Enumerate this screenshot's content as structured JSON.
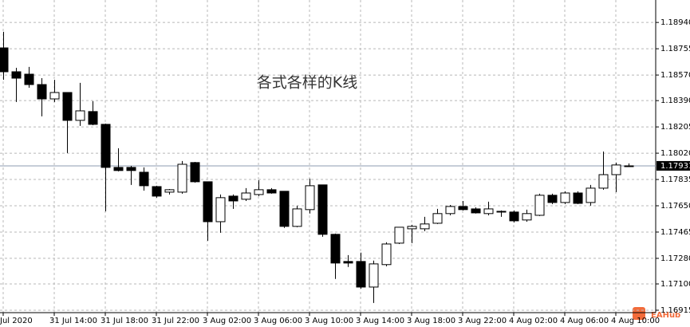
{
  "chart_data": {
    "type": "candlestick",
    "annotation": "各式各样的K线",
    "watermark": "EAHub",
    "categories": [
      "Jul 2020",
      null,
      null,
      null,
      "31 Jul 14:00",
      null,
      null,
      null,
      "31 Jul 18:00",
      null,
      null,
      null,
      "31 Jul 22:00",
      null,
      null,
      null,
      "3 Aug 02:00",
      null,
      null,
      null,
      "3 Aug 06:00",
      null,
      null,
      null,
      "3 Aug 10:00",
      null,
      null,
      null,
      "3 Aug 14:00",
      null,
      null,
      null,
      "3 Aug 18:00",
      null,
      null,
      null,
      "3 Aug 22:00",
      null,
      null,
      null,
      "4 Aug 02:00",
      null,
      null,
      null,
      "4 Aug 06:00",
      null,
      null,
      null,
      "4 Aug 10:00",
      null
    ],
    "open": [
      1.18761,
      1.18593,
      1.18576,
      1.18503,
      1.18402,
      1.18447,
      1.18251,
      1.18313,
      1.18223,
      1.1792,
      1.1792,
      1.17886,
      1.17785,
      1.17746,
      1.17746,
      1.17954,
      1.17819,
      1.17538,
      1.17718,
      1.17696,
      1.17729,
      1.17763,
      1.17752,
      1.17505,
      1.17623,
      1.17797,
      1.17449,
      1.17258,
      1.17258,
      1.17078,
      1.17236,
      1.17387,
      1.17488,
      1.17488,
      1.17527,
      1.17595,
      1.17645,
      1.17628,
      1.17595,
      1.17611,
      1.17606,
      1.1755,
      1.17583,
      1.17724,
      1.17673,
      1.1774,
      1.17673,
      1.17774,
      1.17869,
      1.17926
    ],
    "high": [
      1.18874,
      1.18621,
      1.18627,
      1.18548,
      1.18537,
      1.18447,
      1.18515,
      1.18386,
      1.18228,
      1.18055,
      1.17931,
      1.1792,
      1.17791,
      1.17768,
      1.17965,
      1.17959,
      1.17819,
      1.17729,
      1.17729,
      1.17774,
      1.1783,
      1.17774,
      1.17752,
      1.17651,
      1.17841,
      1.17797,
      1.17454,
      1.17303,
      1.1732,
      1.17264,
      1.17393,
      1.17499,
      1.17516,
      1.17572,
      1.17628,
      1.17656,
      1.17684,
      1.17639,
      1.17679,
      1.17617,
      1.17617,
      1.17623,
      1.17735,
      1.17735,
      1.17752,
      1.17752,
      1.17797,
      1.18032,
      1.17954,
      1.17948
    ],
    "low": [
      1.18537,
      1.1838,
      1.18481,
      1.18279,
      1.1838,
      1.18021,
      1.18212,
      1.18217,
      1.17611,
      1.17892,
      1.17797,
      1.17757,
      1.17707,
      1.17729,
      1.17735,
      1.17813,
      1.17404,
      1.1746,
      1.17628,
      1.17684,
      1.17718,
      1.17735,
      1.17494,
      1.17499,
      1.17595,
      1.17432,
      1.17135,
      1.17219,
      1.17067,
      1.16966,
      1.17224,
      1.17381,
      1.17387,
      1.17471,
      1.17522,
      1.17583,
      1.17617,
      1.17595,
      1.17583,
      1.17572,
      1.17533,
      1.17538,
      1.17578,
      1.17662,
      1.17662,
      1.17662,
      1.17651,
      1.17763,
      1.17746,
      1.17926
    ],
    "close": [
      1.18593,
      1.18548,
      1.18503,
      1.18402,
      1.18447,
      1.18251,
      1.18318,
      1.18223,
      1.1792,
      1.17898,
      1.17898,
      1.17791,
      1.17718,
      1.17763,
      1.17942,
      1.17819,
      1.17538,
      1.17707,
      1.17684,
      1.1774,
      1.17763,
      1.1774,
      1.17505,
      1.17628,
      1.17791,
      1.17449,
      1.17247,
      1.17247,
      1.17078,
      1.17241,
      1.17381,
      1.17499,
      1.17505,
      1.17522,
      1.17595,
      1.17645,
      1.17623,
      1.176,
      1.17628,
      1.17606,
      1.17544,
      1.17595,
      1.17724,
      1.17673,
      1.1774,
      1.17667,
      1.17774,
      1.17869,
      1.17937,
      1.17931
    ],
    "up_color": "#ffffff",
    "down_color": "#000000",
    "last_price": 1.17931,
    "ylim": [
      1.16898,
      1.19098
    ],
    "yticks": [
      {
        "value": 1.1894,
        "label": "1.18940"
      },
      1.18755,
      {
        "value": 1.1857,
        "label": "1.18570"
      },
      {
        "value": 1.1839,
        "label": "1.18390"
      },
      1.18205,
      {
        "value": 1.1802,
        "label": "1.18020"
      },
      1.17835,
      {
        "value": 1.1765,
        "label": "1.17650"
      },
      1.17465,
      {
        "value": 1.1728,
        "label": "1.17280"
      },
      {
        "value": 1.171,
        "label": "1.17100"
      },
      1.16915
    ],
    "grid": true
  }
}
